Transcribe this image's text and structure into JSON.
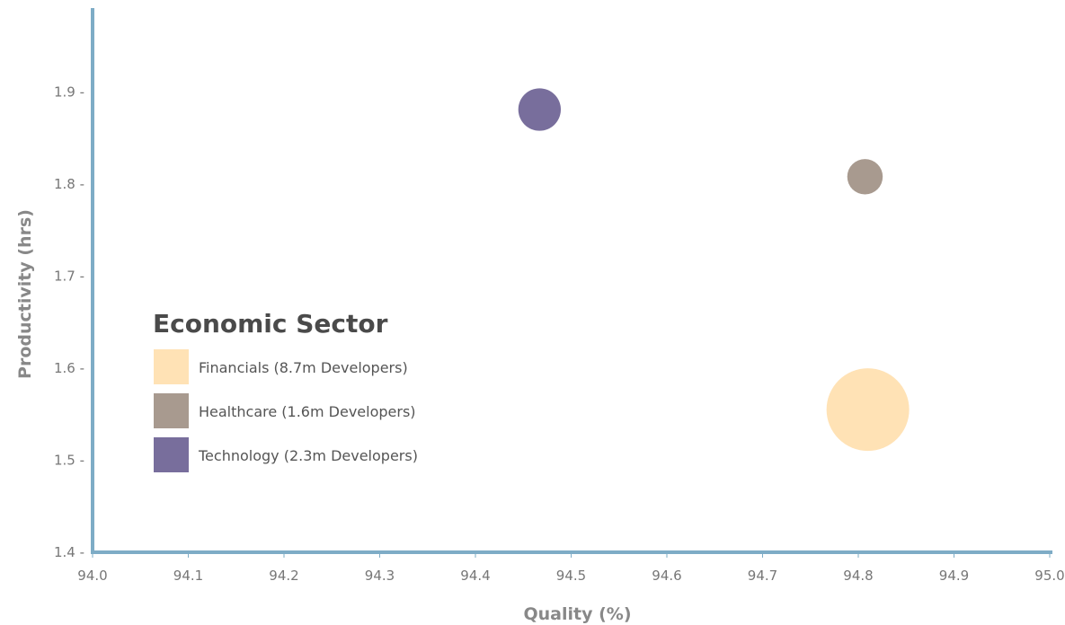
{
  "chart_data": {
    "type": "scatter",
    "title": "",
    "xlabel": "Quality (%)",
    "ylabel": "Productivity (hrs)",
    "xlim": [
      94.0,
      95.0
    ],
    "ylim": [
      1.4,
      2.0
    ],
    "x_ticks": [
      "94.0",
      "94.1",
      "94.2",
      "94.3",
      "94.4",
      "94.5",
      "94.6",
      "94.7",
      "94.8",
      "94.9",
      "95.0"
    ],
    "y_ticks": [
      "1.4",
      "1.5",
      "1.6",
      "1.7",
      "1.8",
      "1.9"
    ],
    "grid": false,
    "legend": {
      "title": "Economic Sector",
      "placement": "center-left"
    },
    "series": [
      {
        "name": "Financials (8.7m Developers)",
        "color": "#ffe2b5",
        "x": 94.81,
        "y": 1.555,
        "size": 8.7
      },
      {
        "name": "Healthcare (1.6m Developers)",
        "color": "#a89a8f",
        "x": 94.807,
        "y": 1.808,
        "size": 1.6
      },
      {
        "name": "Technology (2.3m Developers)",
        "color": "#786e9c",
        "x": 94.467,
        "y": 1.881,
        "size": 2.3
      }
    ],
    "axis_color": "#7eacc6"
  }
}
